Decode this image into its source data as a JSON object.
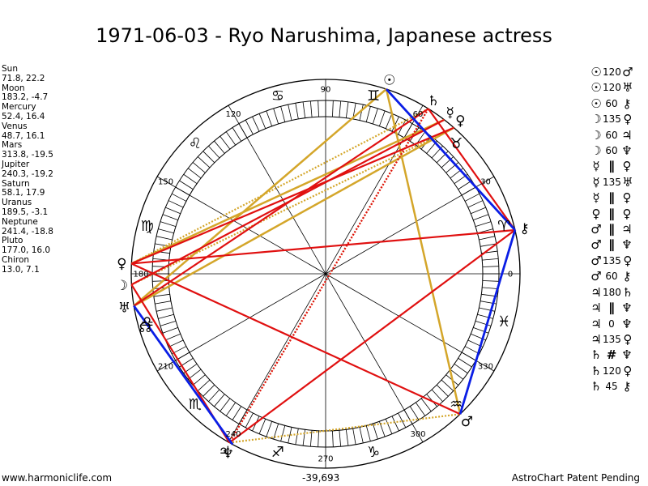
{
  "title": "1971-06-03 - Ryo Narushima, Japanese actress",
  "planets": [
    {
      "name": "Sun",
      "pos": "71.8, 22.2"
    },
    {
      "name": "Moon",
      "pos": "183.2, -4.7"
    },
    {
      "name": "Mercury",
      "pos": "52.4, 16.4"
    },
    {
      "name": "Venus",
      "pos": "48.7, 16.1"
    },
    {
      "name": "Mars",
      "pos": "313.8, -19.5"
    },
    {
      "name": "Jupiter",
      "pos": "240.3, -19.2"
    },
    {
      "name": "Saturn",
      "pos": "58.1, 17.9"
    },
    {
      "name": "Uranus",
      "pos": "189.5, -3.1"
    },
    {
      "name": "Neptune",
      "pos": "241.4, -18.8"
    },
    {
      "name": "Pluto",
      "pos": "177.0, 16.0"
    },
    {
      "name": "Chiron",
      "pos": "13.0, 7.1"
    }
  ],
  "aspects": [
    {
      "p1": "☉",
      "asp": "120",
      "p2": "♂"
    },
    {
      "p1": "☉",
      "asp": "120",
      "p2": "♅"
    },
    {
      "p1": "☉",
      "asp": "60",
      "p2": "⚷"
    },
    {
      "p1": "☽",
      "asp": "135",
      "p2": "♀"
    },
    {
      "p1": "☽",
      "asp": "60",
      "p2": "♃"
    },
    {
      "p1": "☽",
      "asp": "60",
      "p2": "♆"
    },
    {
      "p1": "☿",
      "asp": "∥",
      "p2": "♀"
    },
    {
      "p1": "☿",
      "asp": "135",
      "p2": "♅"
    },
    {
      "p1": "☿",
      "asp": "∥",
      "p2": "♀"
    },
    {
      "p1": "♀",
      "asp": "∥",
      "p2": "♀"
    },
    {
      "p1": "♂",
      "asp": "∥",
      "p2": "♃"
    },
    {
      "p1": "♂",
      "asp": "∥",
      "p2": "♆"
    },
    {
      "p1": "♂",
      "asp": "135",
      "p2": "♀"
    },
    {
      "p1": "♂",
      "asp": "60",
      "p2": "⚷"
    },
    {
      "p1": "♃",
      "asp": "180",
      "p2": "♄"
    },
    {
      "p1": "♃",
      "asp": "∥",
      "p2": "♆"
    },
    {
      "p1": "♃",
      "asp": "0",
      "p2": "♆"
    },
    {
      "p1": "♃",
      "asp": "135",
      "p2": "♀"
    },
    {
      "p1": "♄",
      "asp": "#",
      "p2": "♆"
    },
    {
      "p1": "♄",
      "asp": "120",
      "p2": "♀"
    },
    {
      "p1": "♄",
      "asp": "45",
      "p2": "⚷"
    }
  ],
  "degree_labels": [
    "0",
    "30",
    "60",
    "90",
    "120",
    "150",
    "180",
    "210",
    "240",
    "270",
    "300",
    "330"
  ],
  "sign_glyphs": [
    "♓",
    "♈",
    "♉",
    "♊",
    "♋",
    "♌",
    "♍",
    "♎",
    "♏",
    "♐",
    "♑",
    "♒"
  ],
  "planet_glyphs": {
    "sun": "☉",
    "moon": "☽",
    "mercury": "☿",
    "venus": "♀",
    "mars": "♂",
    "jupiter": "♃",
    "saturn": "♄",
    "uranus": "♅",
    "neptune": "♆",
    "pluto": "♀",
    "chiron": "⚷",
    "node": "☊"
  },
  "colors": {
    "trine_sextile": "#d4a62a",
    "hard": "#e01010",
    "parallel": "#0a1ee6"
  },
  "footer": {
    "left": "www.harmoniclife.com",
    "center": "-39,693",
    "right": "AstroChart Patent Pending"
  }
}
